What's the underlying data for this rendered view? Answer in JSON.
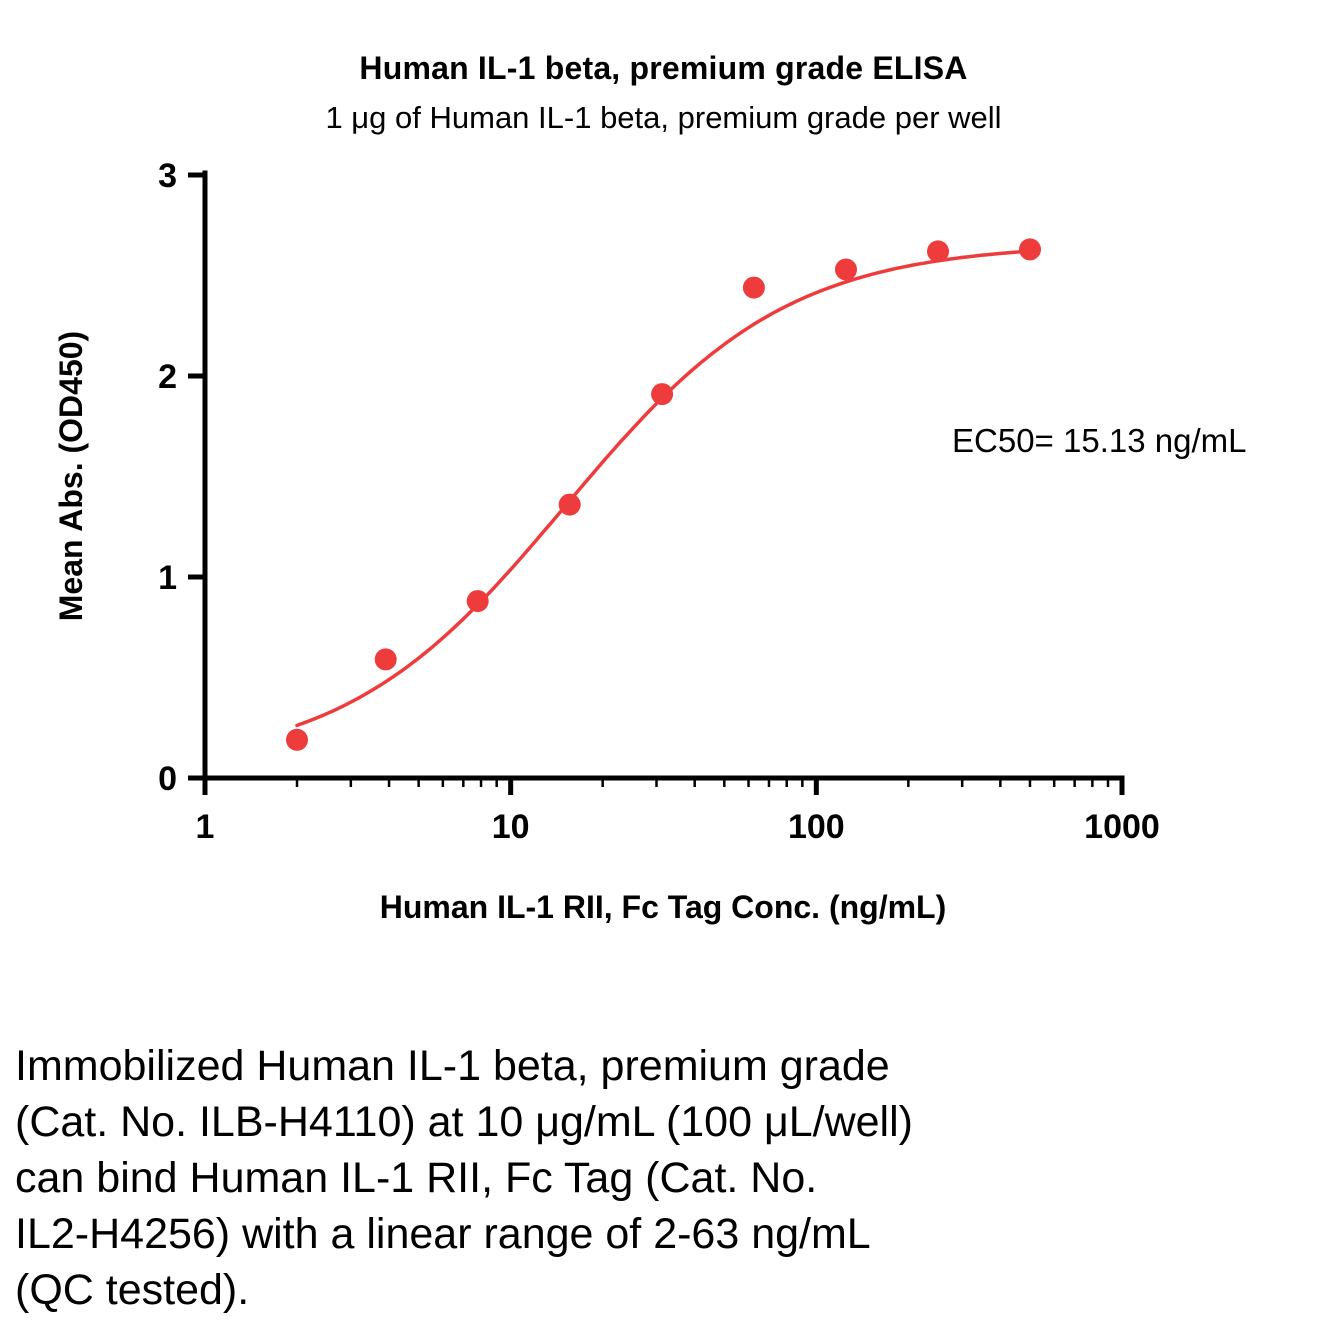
{
  "chart_data": {
    "type": "scatter",
    "title": "Human IL-1 beta, premium grade ELISA",
    "subtitle": "1 μg of Human IL-1 beta, premium grade per well",
    "xlabel": "Human IL-1 RII, Fc Tag Conc. (ng/mL)",
    "ylabel": "Mean Abs. (OD450)",
    "annotation": "EC50= 15.13 ng/mL",
    "x_scale": "log10",
    "xlim": [
      1,
      1000
    ],
    "ylim": [
      0,
      3
    ],
    "x_ticks": [
      1,
      10,
      100,
      1000
    ],
    "y_ticks": [
      0,
      1,
      2,
      3
    ],
    "grid": false,
    "legend": "none",
    "colors": {
      "series": "#ee3b3b",
      "axis": "#000000"
    },
    "series": [
      {
        "name": "Human IL-1 RII, Fc Tag",
        "x": [
          2,
          3.9,
          7.8,
          15.6,
          31.3,
          62.5,
          125,
          250,
          500
        ],
        "y": [
          0.19,
          0.59,
          0.88,
          1.36,
          1.91,
          2.44,
          2.53,
          2.62,
          2.63
        ]
      }
    ],
    "fit": {
      "model": "4PL sigmoid",
      "bottom": 0.05,
      "top": 2.66,
      "ec50": 15.13,
      "hill": 1.2,
      "x_start": 2,
      "x_end": 500
    }
  },
  "caption": {
    "lines": [
      "Immobilized Human IL-1 beta, premium grade",
      "(Cat. No. ILB-H4110) at 10 μg/mL (100 μL/well)",
      "can bind Human IL-1 RII, Fc Tag (Cat. No.",
      "IL2-H4256) with a linear range of 2-63 ng/mL",
      "(QC tested)."
    ]
  }
}
